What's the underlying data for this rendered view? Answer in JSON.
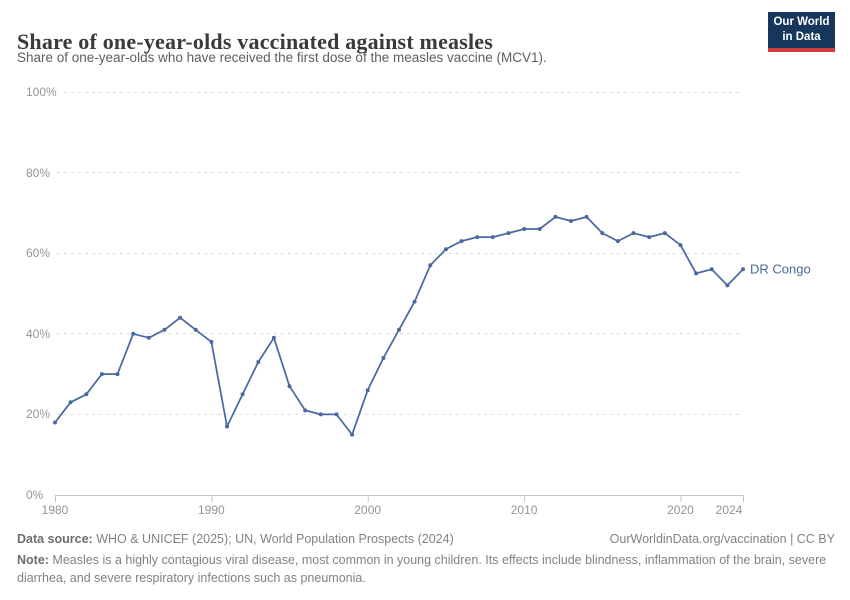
{
  "header": {
    "title": "Share of one-year-olds vaccinated against measles",
    "subtitle": "Share of one-year-olds who have received the first dose of the measles vaccine (MCV1).",
    "logo": {
      "line1": "Our World",
      "line2": "in Data"
    }
  },
  "chart_data": {
    "type": "line",
    "title": "Share of one-year-olds vaccinated against measles",
    "subtitle": "Share of one-year-olds who have received the first dose of the measles vaccine (MCV1).",
    "xlabel": "",
    "ylabel": "",
    "ylim": [
      0,
      100
    ],
    "x_range": [
      1980,
      2024
    ],
    "grid": "horizontal-dashed",
    "legend_position": "end-of-line",
    "y_ticks": [
      {
        "label": "0%",
        "value": 0
      },
      {
        "label": "20%",
        "value": 20
      },
      {
        "label": "40%",
        "value": 40
      },
      {
        "label": "60%",
        "value": 60
      },
      {
        "label": "80%",
        "value": 80
      },
      {
        "label": "100%",
        "value": 100
      }
    ],
    "x_ticks": [
      1980,
      1990,
      2000,
      2010,
      2020,
      2024
    ],
    "series": [
      {
        "name": "DR Congo",
        "x": [
          1980,
          1981,
          1982,
          1983,
          1984,
          1985,
          1986,
          1987,
          1988,
          1989,
          1990,
          1991,
          1992,
          1993,
          1994,
          1995,
          1996,
          1997,
          1998,
          1999,
          2000,
          2001,
          2002,
          2003,
          2004,
          2005,
          2006,
          2007,
          2008,
          2009,
          2010,
          2011,
          2012,
          2013,
          2014,
          2015,
          2016,
          2017,
          2018,
          2019,
          2020,
          2021,
          2022,
          2023,
          2024
        ],
        "values": [
          18,
          23,
          25,
          30,
          30,
          40,
          39,
          41,
          44,
          41,
          38,
          17,
          25,
          33,
          39,
          27,
          21,
          20,
          20,
          15,
          26,
          34,
          41,
          48,
          57,
          61,
          63,
          64,
          64,
          65,
          66,
          66,
          69,
          68,
          69,
          65,
          63,
          65,
          64,
          65,
          62,
          55,
          56,
          52,
          56
        ]
      }
    ]
  },
  "footer": {
    "datasource_label": "Data source:",
    "datasource_text": " WHO & UNICEF (2025); UN, World Population Prospects (2024)",
    "link": "OurWorldinData.org/vaccination | CC BY",
    "note_label": "Note:",
    "note_text": " Measles is a highly contagious viral disease, most common in young children. Its effects include blindness, inflammation of the brain, severe diarrhea, and severe respiratory infections such as pneumonia."
  },
  "colors": {
    "line": "#4a69a0",
    "grid": "#dcdcdc",
    "axis": "#c6c6c6",
    "tick-label": "#949494",
    "title": "#3a3a3a",
    "subtitle": "#5e5e5e",
    "footer": "#828282",
    "logo-navy": "#16365c",
    "logo-red": "#d23b3e",
    "bg": "#ffffff"
  }
}
